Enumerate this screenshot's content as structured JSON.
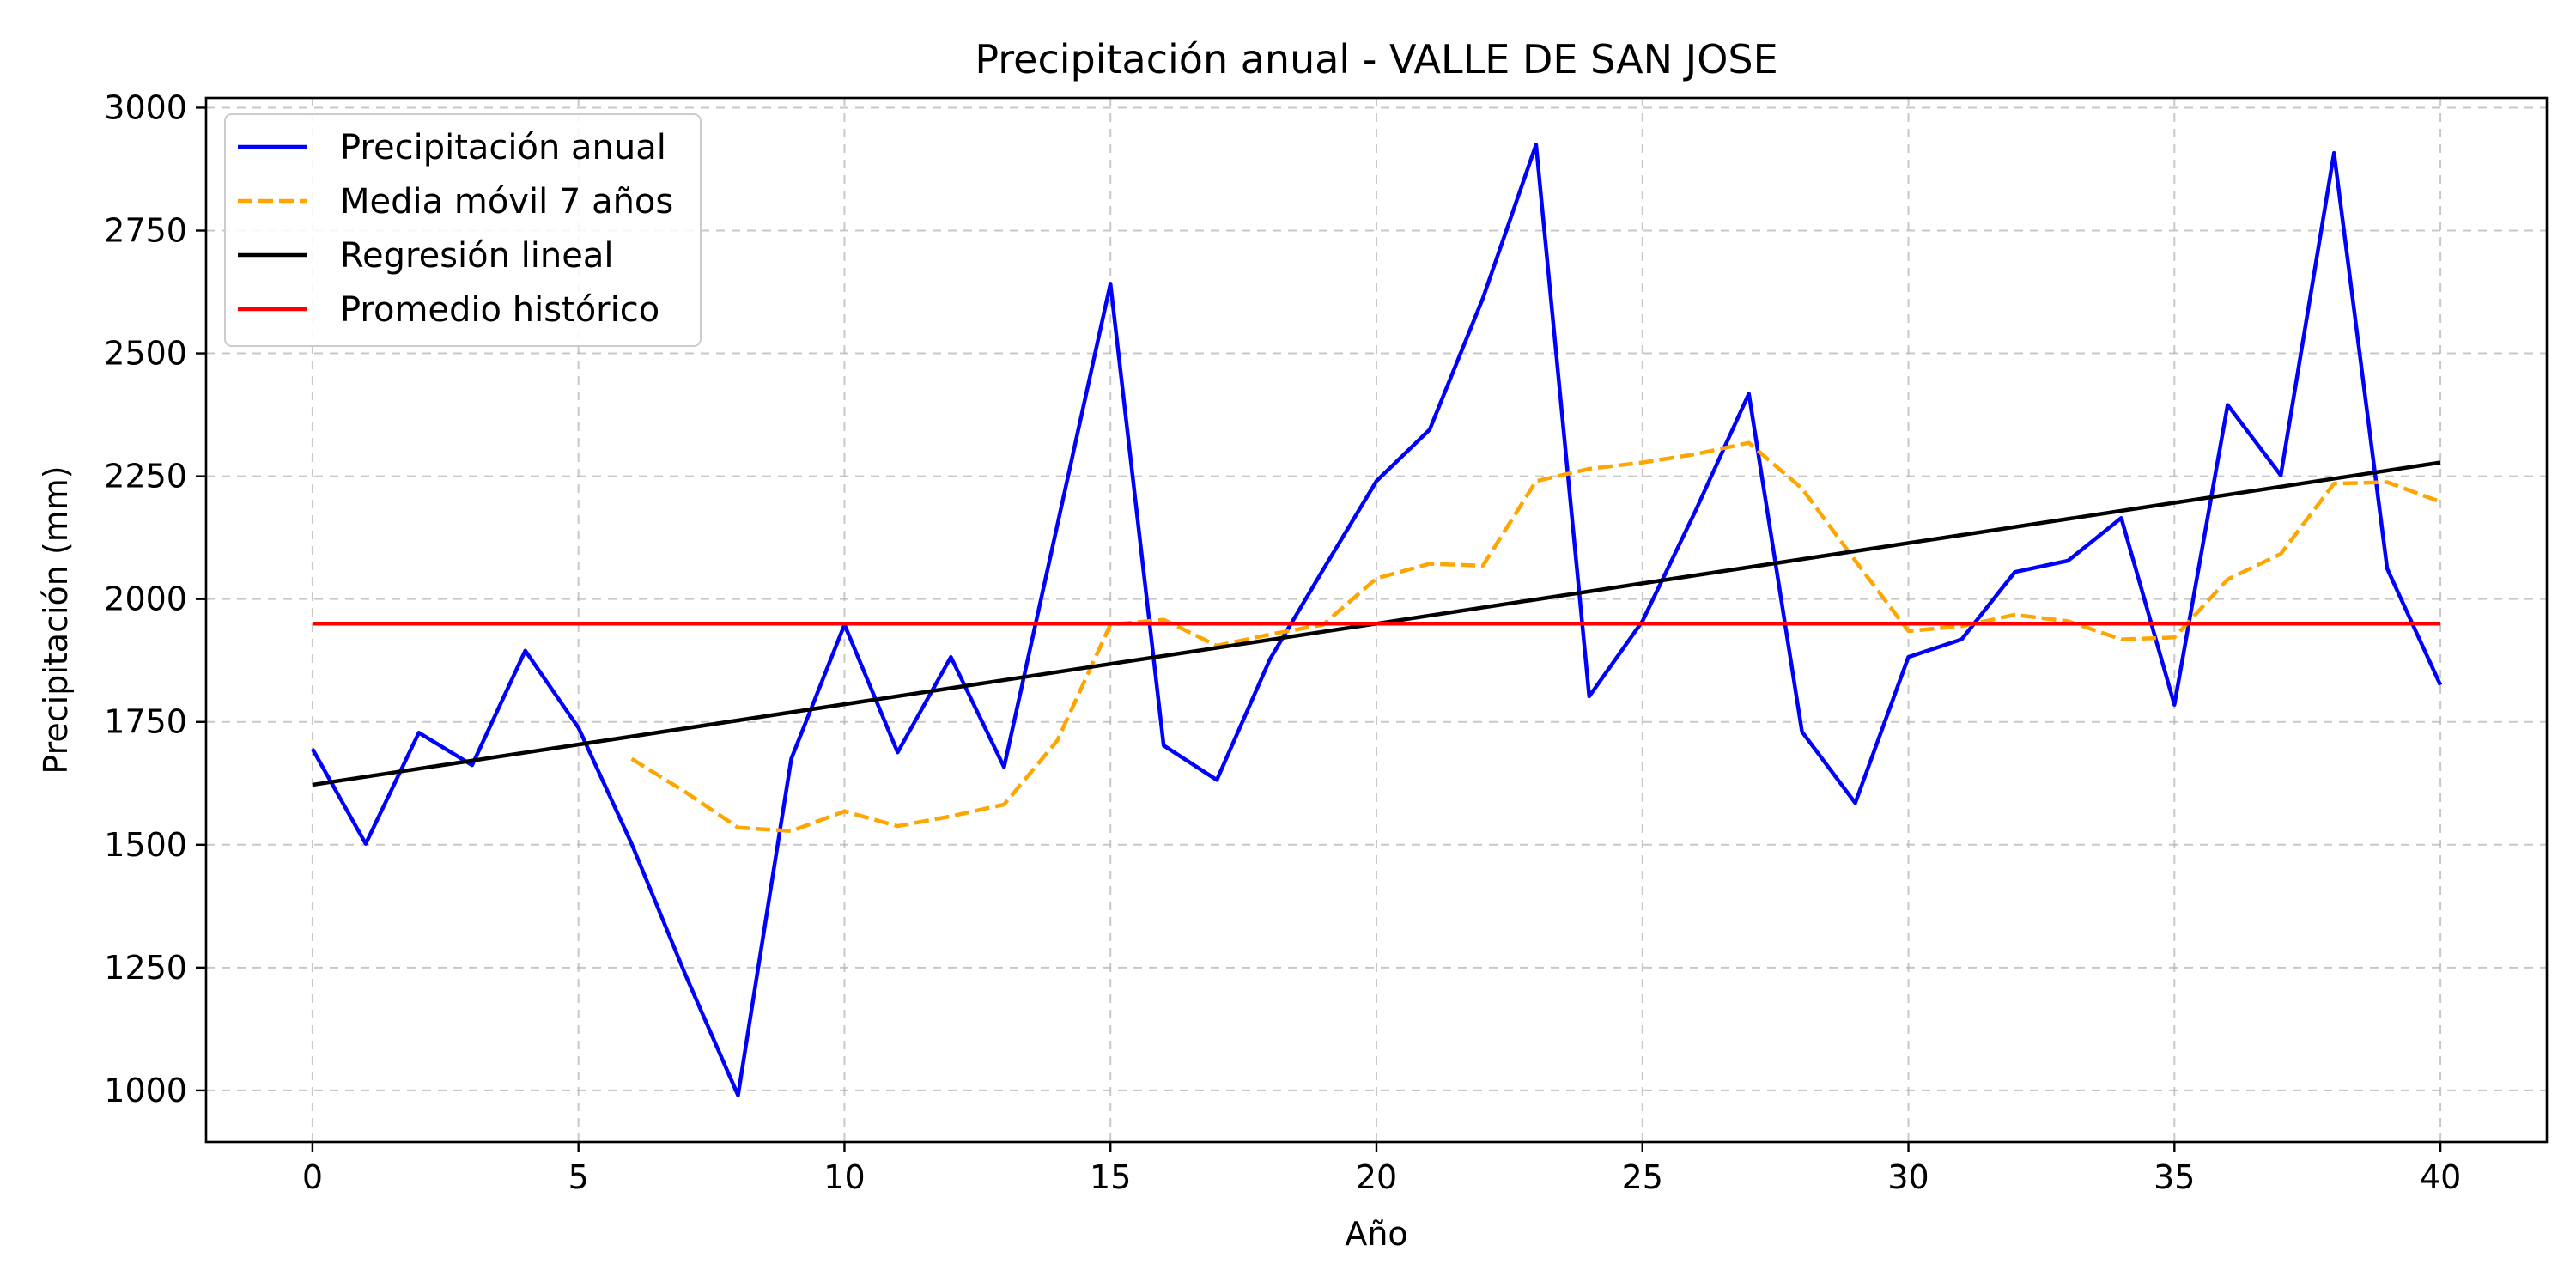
{
  "chart_data": {
    "type": "line",
    "title": "Precipitación anual - VALLE DE SAN JOSE",
    "xlabel": "Año",
    "ylabel": "Precipitación (mm)",
    "xlim": [
      -2,
      42
    ],
    "ylim": [
      895,
      3020
    ],
    "xticks": [
      0,
      5,
      10,
      15,
      20,
      25,
      30,
      35,
      40
    ],
    "yticks": [
      1000,
      1250,
      1500,
      1750,
      2000,
      2250,
      2500,
      2750,
      3000
    ],
    "grid": true,
    "legend_position": "top-left",
    "series": [
      {
        "name": "Precipitación anual",
        "style": "solid",
        "color": "#0000ff",
        "x": [
          0,
          1,
          2,
          3,
          4,
          5,
          6,
          7,
          8,
          9,
          10,
          11,
          12,
          13,
          14,
          15,
          16,
          17,
          18,
          19,
          20,
          21,
          22,
          23,
          24,
          25,
          26,
          27,
          28,
          29,
          30,
          31,
          32,
          33,
          34,
          35,
          36,
          37,
          38,
          39,
          40
        ],
        "y": [
          1695,
          1502,
          1728,
          1662,
          1895,
          1738,
          1502,
          1238,
          990,
          1675,
          1948,
          1688,
          1882,
          1658,
          2150,
          2642,
          1702,
          1632,
          1878,
          2060,
          2240,
          2345,
          2612,
          2925,
          1802,
          1955,
          2180,
          2418,
          1730,
          1585,
          1882,
          1918,
          2055,
          2078,
          2165,
          1785,
          2395,
          2252,
          2908,
          2062,
          1825
        ]
      },
      {
        "name": "Media móvil 7 años",
        "style": "dashed",
        "color": "#ffa500",
        "x": [
          6,
          7,
          8,
          9,
          10,
          11,
          12,
          13,
          14,
          15,
          16,
          17,
          18,
          19,
          20,
          21,
          22,
          23,
          24,
          25,
          26,
          27,
          28,
          29,
          30,
          31,
          32,
          33,
          34,
          35,
          36,
          37,
          38,
          39,
          40
        ],
        "y": [
          1675,
          1608,
          1535,
          1528,
          1568,
          1538,
          1558,
          1582,
          1712,
          1948,
          1958,
          1905,
          1928,
          1948,
          2042,
          2072,
          2068,
          2240,
          2265,
          2278,
          2295,
          2318,
          2225,
          2078,
          1935,
          1945,
          1968,
          1955,
          1918,
          1922,
          2040,
          2092,
          2235,
          2238,
          2198
        ]
      },
      {
        "name": "Regresión lineal",
        "style": "solid",
        "color": "#000000",
        "x": [
          0,
          40
        ],
        "y": [
          1622,
          2278
        ]
      },
      {
        "name": "Promedio histórico",
        "style": "solid",
        "color": "#ff0000",
        "x": [
          0,
          40
        ],
        "y": [
          1950,
          1950
        ]
      }
    ]
  }
}
